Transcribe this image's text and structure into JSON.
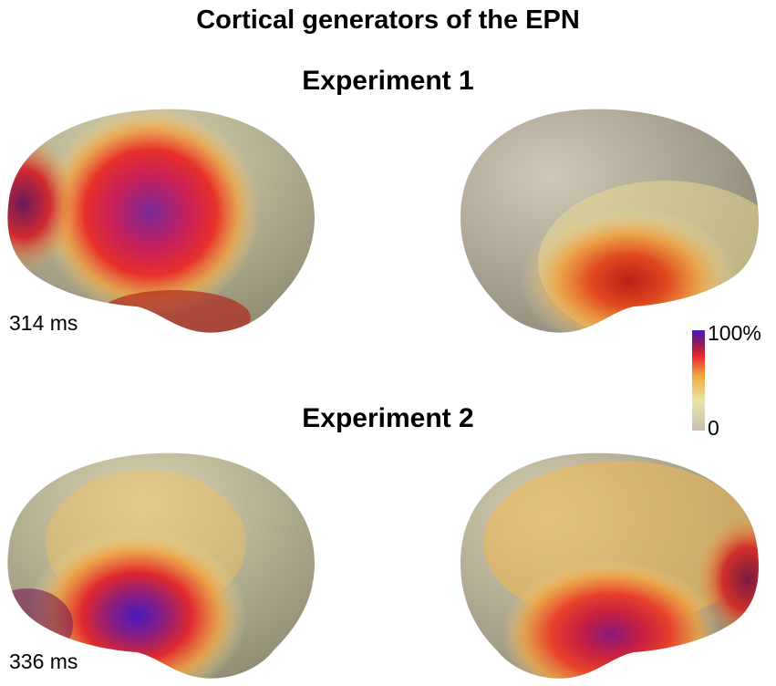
{
  "title": "Cortical generators of the EPN",
  "experiments": [
    {
      "label": "Experiment 1",
      "time": "314 ms"
    },
    {
      "label": "Experiment 2",
      "time": "336 ms"
    }
  ],
  "colorbar": {
    "max_label": "100%",
    "min_label": "0",
    "colors": [
      "#c9bfae",
      "#e8e6a8",
      "#f0a53a",
      "#e8232c",
      "#7a1a6e",
      "#4a17c8"
    ]
  }
}
